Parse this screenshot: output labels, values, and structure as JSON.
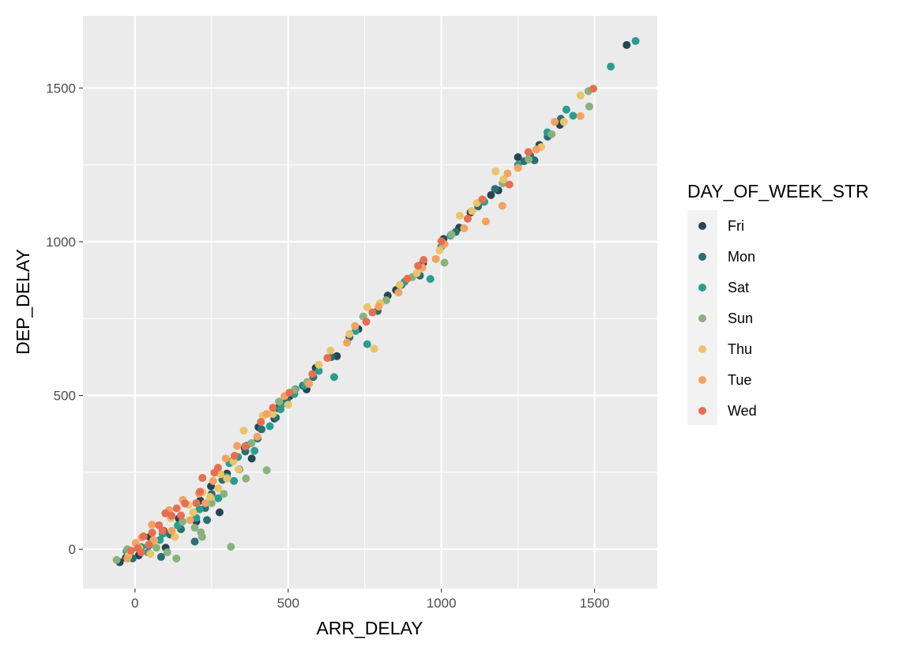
{
  "chart_data": {
    "type": "scatter",
    "title": "",
    "xlabel": "ARR_DELAY",
    "ylabel": "DEP_DELAY",
    "xlim": [
      -170,
      1705
    ],
    "ylim": [
      -128,
      1735
    ],
    "x_ticks": [
      0,
      500,
      1000,
      1500
    ],
    "y_ticks": [
      0,
      500,
      1000,
      1500
    ],
    "grid": true,
    "background": "#ebebeb",
    "legend": {
      "title": "DAY_OF_WEEK_STR",
      "position": "right",
      "entries": [
        "Fri",
        "Mon",
        "Sat",
        "Sun",
        "Thu",
        "Tue",
        "Wed"
      ]
    },
    "series": [
      {
        "name": "Fri",
        "color": "#264653",
        "points": [
          [
            1605,
            1640
          ],
          [
            1387,
            1380
          ],
          [
            1250,
            1275
          ],
          [
            1186,
            1167
          ],
          [
            1095,
            1095
          ],
          [
            1007,
            1009
          ],
          [
            852,
            843
          ],
          [
            825,
            825
          ],
          [
            729,
            716
          ],
          [
            659,
            628
          ],
          [
            590,
            590
          ],
          [
            505,
            498
          ],
          [
            466,
            459
          ],
          [
            403,
            397
          ],
          [
            358,
            330
          ],
          [
            300,
            246
          ],
          [
            248,
            205
          ],
          [
            213,
            158
          ],
          [
            143,
            100
          ],
          [
            93,
            60
          ],
          [
            48,
            40
          ],
          [
            -30,
            -28
          ],
          [
            -50,
            -42
          ],
          [
            12,
            -20
          ],
          [
            100,
            5
          ],
          [
            200,
            90
          ],
          [
            276,
            120
          ],
          [
            381,
            295
          ],
          [
            455,
            425
          ],
          [
            560,
            520
          ],
          [
            940,
            930
          ],
          [
            1058,
            1046
          ],
          [
            1162,
            1152
          ],
          [
            1320,
            1315
          ]
        ]
      },
      {
        "name": "Mon",
        "color": "#2a6f72",
        "points": [
          [
            1304,
            1265
          ],
          [
            1347,
            1342
          ],
          [
            1270,
            1262
          ],
          [
            1175,
            1172
          ],
          [
            1047,
            1032
          ],
          [
            930,
            890
          ],
          [
            792,
            775
          ],
          [
            641,
            625
          ],
          [
            582,
            560
          ],
          [
            548,
            532
          ],
          [
            523,
            520
          ],
          [
            495,
            485
          ],
          [
            460,
            428
          ],
          [
            413,
            390
          ],
          [
            360,
            318
          ],
          [
            318,
            286
          ],
          [
            285,
            226
          ],
          [
            229,
            134
          ],
          [
            235,
            95
          ],
          [
            195,
            25
          ],
          [
            114,
            48
          ],
          [
            45,
            12
          ],
          [
            -8,
            -30
          ],
          [
            85,
            -25
          ],
          [
            150,
            65
          ],
          [
            250,
            180
          ],
          [
            340,
            260
          ],
          [
            400,
            360
          ],
          [
            1390,
            1400
          ],
          [
            1290,
            1280
          ],
          [
            1120,
            1115
          ],
          [
            870,
            860
          ],
          [
            1000,
            985
          ],
          [
            700,
            690
          ]
        ]
      },
      {
        "name": "Sat",
        "color": "#2a9d8f",
        "points": [
          [
            1634,
            1653
          ],
          [
            1553,
            1570
          ],
          [
            1408,
            1430
          ],
          [
            1346,
            1356
          ],
          [
            964,
            879
          ],
          [
            758,
            667
          ],
          [
            650,
            560
          ],
          [
            554,
            533
          ],
          [
            475,
            455
          ],
          [
            364,
            337
          ],
          [
            308,
            280
          ],
          [
            323,
            222
          ],
          [
            272,
            166
          ],
          [
            200,
            102
          ],
          [
            140,
            77
          ],
          [
            81,
            30
          ],
          [
            21,
            7
          ],
          [
            -28,
            -6
          ],
          [
            42,
            -10
          ],
          [
            90,
            50
          ],
          [
            210,
            130
          ],
          [
            300,
            235
          ],
          [
            336,
            300
          ],
          [
            390,
            320
          ],
          [
            440,
            400
          ],
          [
            478,
            470
          ],
          [
            520,
            505
          ],
          [
            600,
            580
          ],
          [
            720,
            710
          ],
          [
            880,
            870
          ],
          [
            1030,
            1020
          ],
          [
            1140,
            1130
          ],
          [
            1250,
            1250
          ],
          [
            1430,
            1410
          ]
        ]
      },
      {
        "name": "Sun",
        "color": "#8ab17d",
        "points": [
          [
            1480,
            1490
          ],
          [
            1483,
            1440
          ],
          [
            1285,
            1268
          ],
          [
            1033,
            1024
          ],
          [
            1004,
            990
          ],
          [
            1010,
            932
          ],
          [
            905,
            885
          ],
          [
            745,
            757
          ],
          [
            562,
            544
          ],
          [
            521,
            518
          ],
          [
            430,
            257
          ],
          [
            362,
            230
          ],
          [
            313,
            8
          ],
          [
            215,
            55
          ],
          [
            219,
            40
          ],
          [
            195,
            70
          ],
          [
            155,
            90
          ],
          [
            135,
            -30
          ],
          [
            105,
            -10
          ],
          [
            52,
            18
          ],
          [
            -25,
            0
          ],
          [
            -60,
            -35
          ],
          [
            70,
            5
          ],
          [
            250,
            150
          ],
          [
            290,
            180
          ],
          [
            380,
            345
          ],
          [
            470,
            480
          ],
          [
            820,
            810
          ],
          [
            1200,
            1190
          ],
          [
            1360,
            1350
          ]
        ]
      },
      {
        "name": "Thu",
        "color": "#e9c46a",
        "points": [
          [
            1454,
            1476
          ],
          [
            1326,
            1308
          ],
          [
            1177,
            1229
          ],
          [
            1203,
            1203
          ],
          [
            1116,
            1126
          ],
          [
            1060,
            1085
          ],
          [
            994,
            972
          ],
          [
            920,
            898
          ],
          [
            864,
            860
          ],
          [
            781,
            652
          ],
          [
            758,
            787
          ],
          [
            638,
            646
          ],
          [
            500,
            470
          ],
          [
            417,
            434
          ],
          [
            355,
            386
          ],
          [
            338,
            260
          ],
          [
            321,
            286
          ],
          [
            279,
            244
          ],
          [
            272,
            198
          ],
          [
            220,
            185
          ],
          [
            190,
            120
          ],
          [
            174,
            144
          ],
          [
            116,
            101
          ],
          [
            62,
            28
          ],
          [
            14,
            4
          ],
          [
            -22,
            -22
          ],
          [
            50,
            -15
          ],
          [
            130,
            40
          ],
          [
            245,
            170
          ],
          [
            300,
            230
          ],
          [
            450,
            440
          ],
          [
            600,
            600
          ],
          [
            700,
            700
          ],
          [
            800,
            800
          ],
          [
            1100,
            1100
          ],
          [
            1400,
            1390
          ]
        ]
      },
      {
        "name": "Tue",
        "color": "#f4a261",
        "points": [
          [
            1454,
            1409
          ],
          [
            1370,
            1390
          ],
          [
            1216,
            1222
          ],
          [
            1199,
            1117
          ],
          [
            1145,
            1066
          ],
          [
            1074,
            1044
          ],
          [
            1010,
            993
          ],
          [
            982,
            944
          ],
          [
            938,
            916
          ],
          [
            860,
            835
          ],
          [
            795,
            789
          ],
          [
            718,
            726
          ],
          [
            692,
            672
          ],
          [
            568,
            538
          ],
          [
            488,
            498
          ],
          [
            430,
            440
          ],
          [
            399,
            366
          ],
          [
            333,
            336
          ],
          [
            296,
            295
          ],
          [
            255,
            222
          ],
          [
            209,
            181
          ],
          [
            156,
            160
          ],
          [
            111,
            127
          ],
          [
            55,
            80
          ],
          [
            21,
            38
          ],
          [
            -25,
            -30
          ],
          [
            2,
            20
          ],
          [
            60,
            30
          ],
          [
            120,
            60
          ],
          [
            180,
            95
          ],
          [
            230,
            150
          ],
          [
            1310,
            1300
          ],
          [
            1250,
            1240
          ]
        ]
      },
      {
        "name": "Wed",
        "color": "#e76f51",
        "points": [
          [
            1496,
            1498
          ],
          [
            1284,
            1292
          ],
          [
            1222,
            1186
          ],
          [
            1134,
            1138
          ],
          [
            1086,
            1075
          ],
          [
            1000,
            1002
          ],
          [
            942,
            941
          ],
          [
            924,
            922
          ],
          [
            889,
            880
          ],
          [
            775,
            770
          ],
          [
            755,
            740
          ],
          [
            628,
            622
          ],
          [
            579,
            570
          ],
          [
            504,
            509
          ],
          [
            450,
            460
          ],
          [
            411,
            414
          ],
          [
            360,
            335
          ],
          [
            325,
            304
          ],
          [
            271,
            265
          ],
          [
            259,
            249
          ],
          [
            220,
            232
          ],
          [
            212,
            187
          ],
          [
            163,
            149
          ],
          [
            136,
            133
          ],
          [
            119,
            109
          ],
          [
            99,
            117
          ],
          [
            78,
            78
          ],
          [
            56,
            54
          ],
          [
            28,
            42
          ],
          [
            9,
            3
          ],
          [
            -13,
            -5
          ],
          [
            20,
            -10
          ],
          [
            45,
            15
          ],
          [
            90,
            60
          ],
          [
            150,
            110
          ],
          [
            200,
            150
          ]
        ]
      }
    ]
  }
}
